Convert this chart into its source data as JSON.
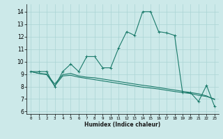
{
  "title": "",
  "xlabel": "Humidex (Indice chaleur)",
  "background_color": "#cce9e9",
  "grid_color": "#aad4d4",
  "line_color": "#1a7a6a",
  "xlim": [
    -0.5,
    23.5
  ],
  "ylim": [
    5.8,
    14.6
  ],
  "xticks": [
    0,
    1,
    2,
    3,
    4,
    5,
    6,
    7,
    8,
    9,
    10,
    11,
    12,
    13,
    14,
    15,
    16,
    17,
    18,
    19,
    20,
    21,
    22,
    23
  ],
  "yticks": [
    6,
    7,
    8,
    9,
    10,
    11,
    12,
    13,
    14
  ],
  "series1_x": [
    0,
    1,
    2,
    3,
    4,
    5,
    6,
    7,
    8,
    9,
    10,
    11,
    12,
    13,
    14,
    15,
    16,
    17,
    18,
    19,
    20,
    21,
    22,
    23
  ],
  "series1_y": [
    9.2,
    9.2,
    9.2,
    8.0,
    9.2,
    9.8,
    9.2,
    10.4,
    10.4,
    9.5,
    9.5,
    11.1,
    12.4,
    12.1,
    14.0,
    14.0,
    12.4,
    12.3,
    12.1,
    7.5,
    7.5,
    6.8,
    8.1,
    6.4
  ],
  "series2_x": [
    0,
    1,
    2,
    3,
    4,
    5,
    6,
    7,
    8,
    9,
    10,
    11,
    12,
    13,
    14,
    15,
    16,
    17,
    18,
    19,
    20,
    21,
    22,
    23
  ],
  "series2_y": [
    9.2,
    9.05,
    8.95,
    8.05,
    8.85,
    8.9,
    8.75,
    8.65,
    8.55,
    8.45,
    8.35,
    8.25,
    8.15,
    8.05,
    7.95,
    7.88,
    7.8,
    7.7,
    7.6,
    7.52,
    7.44,
    7.3,
    7.2,
    7.0
  ],
  "series3_x": [
    0,
    1,
    2,
    3,
    4,
    5,
    6,
    7,
    8,
    9,
    10,
    11,
    12,
    13,
    14,
    15,
    16,
    17,
    18,
    19,
    20,
    21,
    22,
    23
  ],
  "series3_y": [
    9.2,
    9.05,
    9.0,
    8.2,
    8.95,
    9.05,
    8.85,
    8.75,
    8.7,
    8.6,
    8.5,
    8.4,
    8.3,
    8.2,
    8.1,
    8.02,
    7.92,
    7.82,
    7.72,
    7.62,
    7.52,
    7.42,
    7.25,
    6.95
  ]
}
